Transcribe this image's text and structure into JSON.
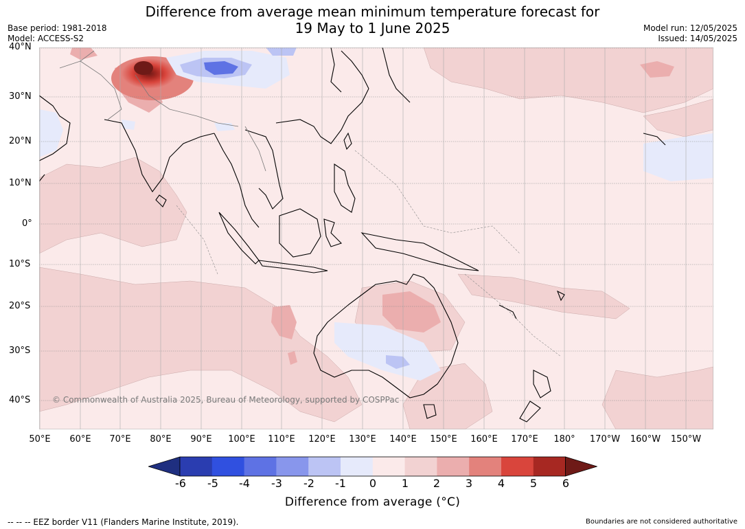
{
  "title_line1": "Difference from average mean minimum temperature forecast for",
  "title_line2": "19 May to 1 June 2025",
  "base_period": "Base period: 1981-2018",
  "model": "Model: ACCESS-S2",
  "model_run": "Model run: 12/05/2025",
  "issued": "Issued: 14/05/2025",
  "lat_labels": [
    "40°N",
    "30°N",
    "20°N",
    "10°N",
    "0°",
    "10°S",
    "20°S",
    "30°S",
    "40°S"
  ],
  "lon_labels": [
    "50°E",
    "60°E",
    "70°E",
    "80°E",
    "90°E",
    "100°E",
    "110°E",
    "120°E",
    "130°E",
    "140°E",
    "150°E",
    "160°E",
    "170°E",
    "180°",
    "170°W",
    "160°W",
    "150°W"
  ],
  "copyright": "© Commonwealth of Australia 2025, Bureau of Meteorology, supported by COSPPac",
  "colorbar": {
    "ticks": [
      "-6",
      "-5",
      "-4",
      "-3",
      "-2",
      "-1",
      "0",
      "1",
      "2",
      "3",
      "4",
      "5",
      "6"
    ],
    "label": "Difference from average (°C)",
    "colors": [
      "#1f2f80",
      "#2a3db0",
      "#3050e0",
      "#5e72e4",
      "#8896ec",
      "#bcc4f4",
      "#e6eafb",
      "#fbeaea",
      "#f2d2d2",
      "#ebaeae",
      "#e3827c",
      "#d9453c",
      "#a72822",
      "#6e1a17"
    ]
  },
  "footer_left": "--  --  -- EEZ border V11 (Flanders Marine Institute, 2019).",
  "footer_right": "Boundaries are not considered authoritative"
}
